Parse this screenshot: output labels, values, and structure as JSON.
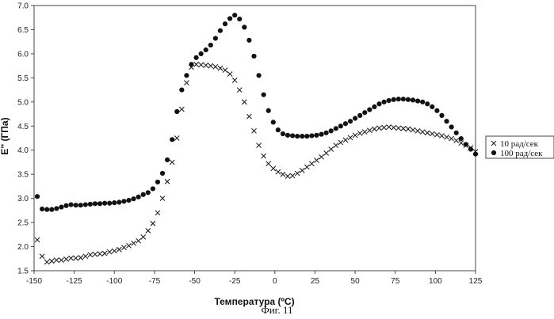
{
  "chart_data": {
    "type": "scatter",
    "xlabel": "Температура (ºC)",
    "ylabel": "E'' (ГПа)",
    "xlim": [
      -150,
      125
    ],
    "ylim": [
      1.5,
      7.0
    ],
    "xticks": [
      "-150",
      "-125",
      "-100",
      "-75",
      "-50",
      "-25",
      "0",
      "25",
      "50",
      "75",
      "100",
      "125"
    ],
    "yticks": [
      "1.5",
      "2.0",
      "2.5",
      "3.0",
      "3.5",
      "4.0",
      "4.5",
      "5.0",
      "5.5",
      "6.0",
      "6.5",
      "7.0"
    ],
    "grid": false,
    "legend_position": "right",
    "series": [
      {
        "name": "10 рад/сек",
        "marker": "x",
        "x": [
          -148,
          -145,
          -142,
          -139,
          -136,
          -133,
          -130,
          -127,
          -124,
          -121,
          -118,
          -115,
          -112,
          -109,
          -106,
          -103,
          -100,
          -97,
          -94,
          -91,
          -88,
          -85,
          -82,
          -79,
          -76,
          -73,
          -70,
          -67,
          -64,
          -61,
          -58,
          -55,
          -52,
          -49,
          -46,
          -43,
          -40,
          -37,
          -34,
          -31,
          -28,
          -25,
          -22,
          -19,
          -16,
          -13,
          -10,
          -7,
          -4,
          -1,
          2,
          5,
          8,
          11,
          14,
          17,
          20,
          23,
          26,
          29,
          32,
          35,
          38,
          41,
          44,
          47,
          50,
          53,
          56,
          59,
          62,
          65,
          68,
          71,
          74,
          77,
          80,
          83,
          86,
          89,
          92,
          95,
          98,
          101,
          104,
          107,
          110,
          113,
          116,
          119,
          122,
          125
        ],
        "y": [
          2.14,
          1.8,
          1.68,
          1.7,
          1.72,
          1.72,
          1.74,
          1.76,
          1.76,
          1.77,
          1.8,
          1.83,
          1.84,
          1.85,
          1.86,
          1.89,
          1.91,
          1.94,
          1.98,
          2.02,
          2.07,
          2.12,
          2.2,
          2.33,
          2.48,
          2.7,
          3.0,
          3.35,
          3.75,
          4.25,
          4.85,
          5.4,
          5.72,
          5.78,
          5.77,
          5.76,
          5.75,
          5.73,
          5.7,
          5.66,
          5.58,
          5.45,
          5.25,
          5.0,
          4.7,
          4.4,
          4.1,
          3.88,
          3.72,
          3.62,
          3.55,
          3.5,
          3.46,
          3.47,
          3.52,
          3.58,
          3.65,
          3.72,
          3.79,
          3.86,
          3.94,
          4.02,
          4.1,
          4.16,
          4.21,
          4.26,
          4.31,
          4.35,
          4.38,
          4.41,
          4.44,
          4.46,
          4.47,
          4.48,
          4.47,
          4.46,
          4.45,
          4.44,
          4.42,
          4.4,
          4.38,
          4.36,
          4.34,
          4.32,
          4.3,
          4.27,
          4.24,
          4.2,
          4.15,
          4.1,
          4.05,
          3.97
        ]
      },
      {
        "name": "100 рад/сек",
        "marker": "circle",
        "x": [
          -148,
          -145,
          -142,
          -139,
          -136,
          -133,
          -130,
          -127,
          -124,
          -121,
          -118,
          -115,
          -112,
          -109,
          -106,
          -103,
          -100,
          -97,
          -94,
          -91,
          -88,
          -85,
          -82,
          -79,
          -76,
          -73,
          -70,
          -67,
          -64,
          -61,
          -58,
          -55,
          -52,
          -49,
          -46,
          -43,
          -40,
          -37,
          -34,
          -31,
          -28,
          -25,
          -22,
          -19,
          -16,
          -13,
          -10,
          -7,
          -4,
          -1,
          2,
          5,
          8,
          11,
          14,
          17,
          20,
          23,
          26,
          29,
          32,
          35,
          38,
          41,
          44,
          47,
          50,
          53,
          56,
          59,
          62,
          65,
          68,
          71,
          74,
          77,
          80,
          83,
          86,
          89,
          92,
          95,
          98,
          101,
          104,
          107,
          110,
          113,
          116,
          119,
          122,
          125
        ],
        "y": [
          3.04,
          2.78,
          2.77,
          2.77,
          2.79,
          2.82,
          2.85,
          2.87,
          2.86,
          2.86,
          2.87,
          2.88,
          2.89,
          2.89,
          2.9,
          2.9,
          2.91,
          2.92,
          2.94,
          2.96,
          2.99,
          3.03,
          3.08,
          3.12,
          3.2,
          3.34,
          3.52,
          3.8,
          4.22,
          4.8,
          5.25,
          5.55,
          5.78,
          5.92,
          6.0,
          6.08,
          6.18,
          6.32,
          6.48,
          6.62,
          6.73,
          6.8,
          6.72,
          6.55,
          6.28,
          5.95,
          5.55,
          5.15,
          4.82,
          4.58,
          4.42,
          4.34,
          4.31,
          4.3,
          4.29,
          4.29,
          4.29,
          4.3,
          4.31,
          4.33,
          4.36,
          4.4,
          4.45,
          4.5,
          4.55,
          4.6,
          4.66,
          4.72,
          4.78,
          4.84,
          4.9,
          4.96,
          5.0,
          5.03,
          5.05,
          5.06,
          5.06,
          5.05,
          5.04,
          5.02,
          5.0,
          4.96,
          4.9,
          4.82,
          4.72,
          4.6,
          4.48,
          4.36,
          4.24,
          4.12,
          4.02,
          3.92
        ]
      }
    ]
  },
  "caption": "Фиг. 11"
}
